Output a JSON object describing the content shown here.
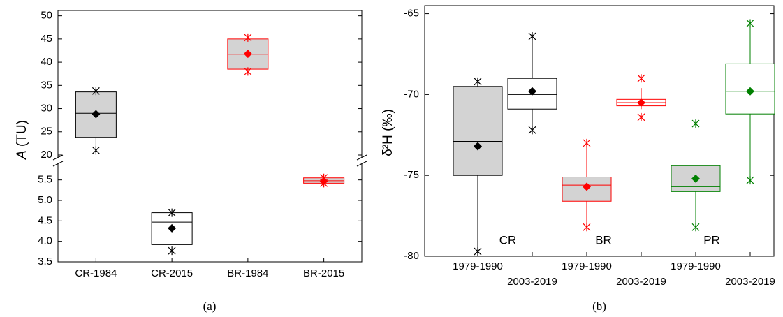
{
  "chart_data": [
    {
      "type": "box",
      "ylabel_symbol": "A",
      "ylabel": "(TU)",
      "caption": "(a)",
      "categories": [
        "CR-1984",
        "CR-2015",
        "BR-1984",
        "BR-2015"
      ],
      "ylim": [
        20,
        51
      ],
      "yticks": [
        20,
        25,
        30,
        35,
        40,
        45,
        50
      ],
      "y2lim": [
        3.5,
        5.75
      ],
      "y2ticks": [
        3.5,
        {
          "value": 4,
          "label": "4.0"
        },
        4.5,
        {
          "value": 5,
          "label": "5.0"
        },
        5.5
      ],
      "boxes": [
        {
          "color": "#000000",
          "fill": "#d3d3d3",
          "min": 21,
          "whisker_low": 21,
          "q1": 23.8,
          "median": 29,
          "q3": 33.6,
          "whisker_high": 33.8,
          "max": 33.8,
          "mean": 28.8
        },
        {
          "axis": "y2",
          "color": "#000000",
          "fill": "#ffffff",
          "min": 3.77,
          "whisker_low": 3.92,
          "q1": 3.92,
          "median": 4.47,
          "q3": 4.7,
          "whisker_high": 4.7,
          "max": 4.7,
          "mean": 4.32
        },
        {
          "color": "#ff0000",
          "fill": "#d3d3d3",
          "min": 38,
          "whisker_low": 38.5,
          "q1": 38.5,
          "median": 41.7,
          "q3": 45,
          "whisker_high": 45.3,
          "max": 45.3,
          "mean": 41.8
        },
        {
          "axis": "y2",
          "color": "#ff0000",
          "fill": "#d3d3d3",
          "min": 5.42,
          "whisker_low": 5.42,
          "q1": 5.42,
          "median": 5.48,
          "q3": 5.55,
          "whisker_high": 5.55,
          "max": 5.55,
          "mean": 5.47
        }
      ]
    },
    {
      "type": "box",
      "ylabel": "δ²H (‰)",
      "caption": "(b)",
      "categories": [
        "1979-1990",
        "2003-2019",
        "1979-1990",
        "2003-2019",
        "1979-1990",
        "2003-2019"
      ],
      "annotations": [
        "CR",
        "BR",
        "PR"
      ],
      "ylim": [
        -80,
        -64.5
      ],
      "yticks": [
        -80,
        -75,
        -70,
        -65
      ],
      "boxes": [
        {
          "color": "#000000",
          "fill": "#d3d3d3",
          "min": -79.7,
          "whisker_low": -79.7,
          "q1": -75,
          "median": -72.9,
          "q3": -69.5,
          "whisker_high": -69.2,
          "max": -69.2,
          "mean": -73.2
        },
        {
          "color": "#000000",
          "fill": "#ffffff",
          "min": -72.2,
          "whisker_low": -72.2,
          "q1": -70.9,
          "median": -70,
          "q3": -69,
          "whisker_high": -66.4,
          "max": -66.4,
          "mean": -69.8
        },
        {
          "color": "#ff0000",
          "fill": "#d3d3d3",
          "min": -78.2,
          "whisker_low": -78.2,
          "q1": -76.6,
          "median": -75.6,
          "q3": -75.1,
          "whisker_high": -73,
          "max": -73,
          "mean": -75.7
        },
        {
          "color": "#ff0000",
          "fill": "#ffffff",
          "min": -71.4,
          "whisker_low": -70.9,
          "q1": -70.7,
          "median": -70.5,
          "q3": -70.3,
          "whisker_high": -69.6,
          "max": -69,
          "mean": -70.5
        },
        {
          "color": "#008000",
          "fill": "#d3d3d3",
          "min": -78.2,
          "whisker_low": -78.2,
          "q1": -76,
          "median": -75.7,
          "q3": -74.4,
          "whisker_high": -74.4,
          "max": -71.8,
          "mean": -75.2
        },
        {
          "color": "#008000",
          "fill": "#ffffff",
          "min": -75.3,
          "whisker_low": -75.3,
          "q1": -71.2,
          "median": -69.8,
          "q3": -68.1,
          "whisker_high": -65.6,
          "max": -65.6,
          "mean": -69.8
        }
      ]
    }
  ]
}
